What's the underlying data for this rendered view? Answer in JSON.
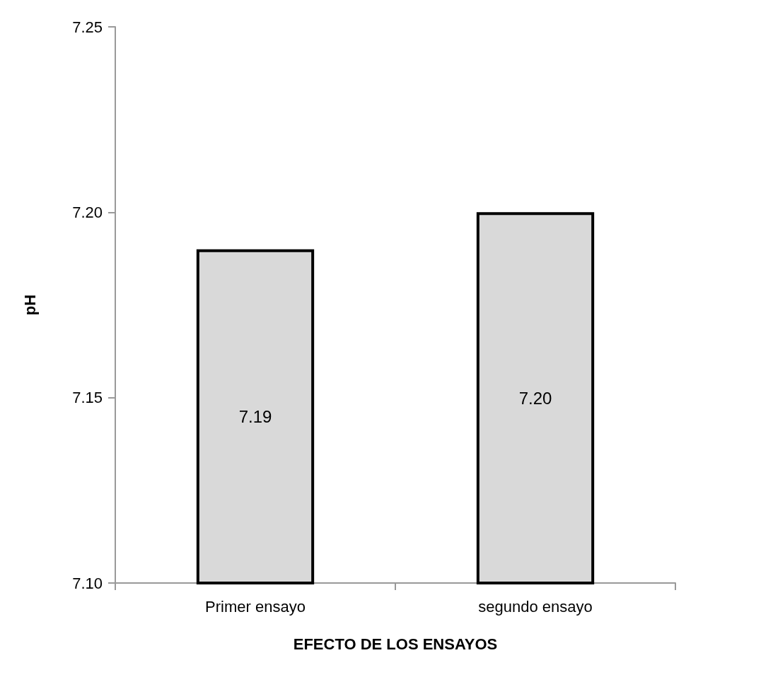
{
  "chart_data": {
    "type": "bar",
    "xlabel": "EFECTO DE LOS ENSAYOS",
    "ylabel": "pH",
    "categories": [
      "Primer ensayo",
      "segundo ensayo"
    ],
    "values": [
      7.19,
      7.2
    ],
    "value_labels": [
      "7.19",
      "7.20"
    ],
    "color": "#d9d9d9",
    "ylim": [
      7.1,
      7.25
    ],
    "yticks": [
      {
        "value": 7.1,
        "label": "7.10"
      },
      {
        "value": 7.15,
        "label": "7.15"
      },
      {
        "value": 7.2,
        "label": "7.20"
      },
      {
        "value": 7.25,
        "label": "7.25"
      }
    ],
    "grid": false
  }
}
